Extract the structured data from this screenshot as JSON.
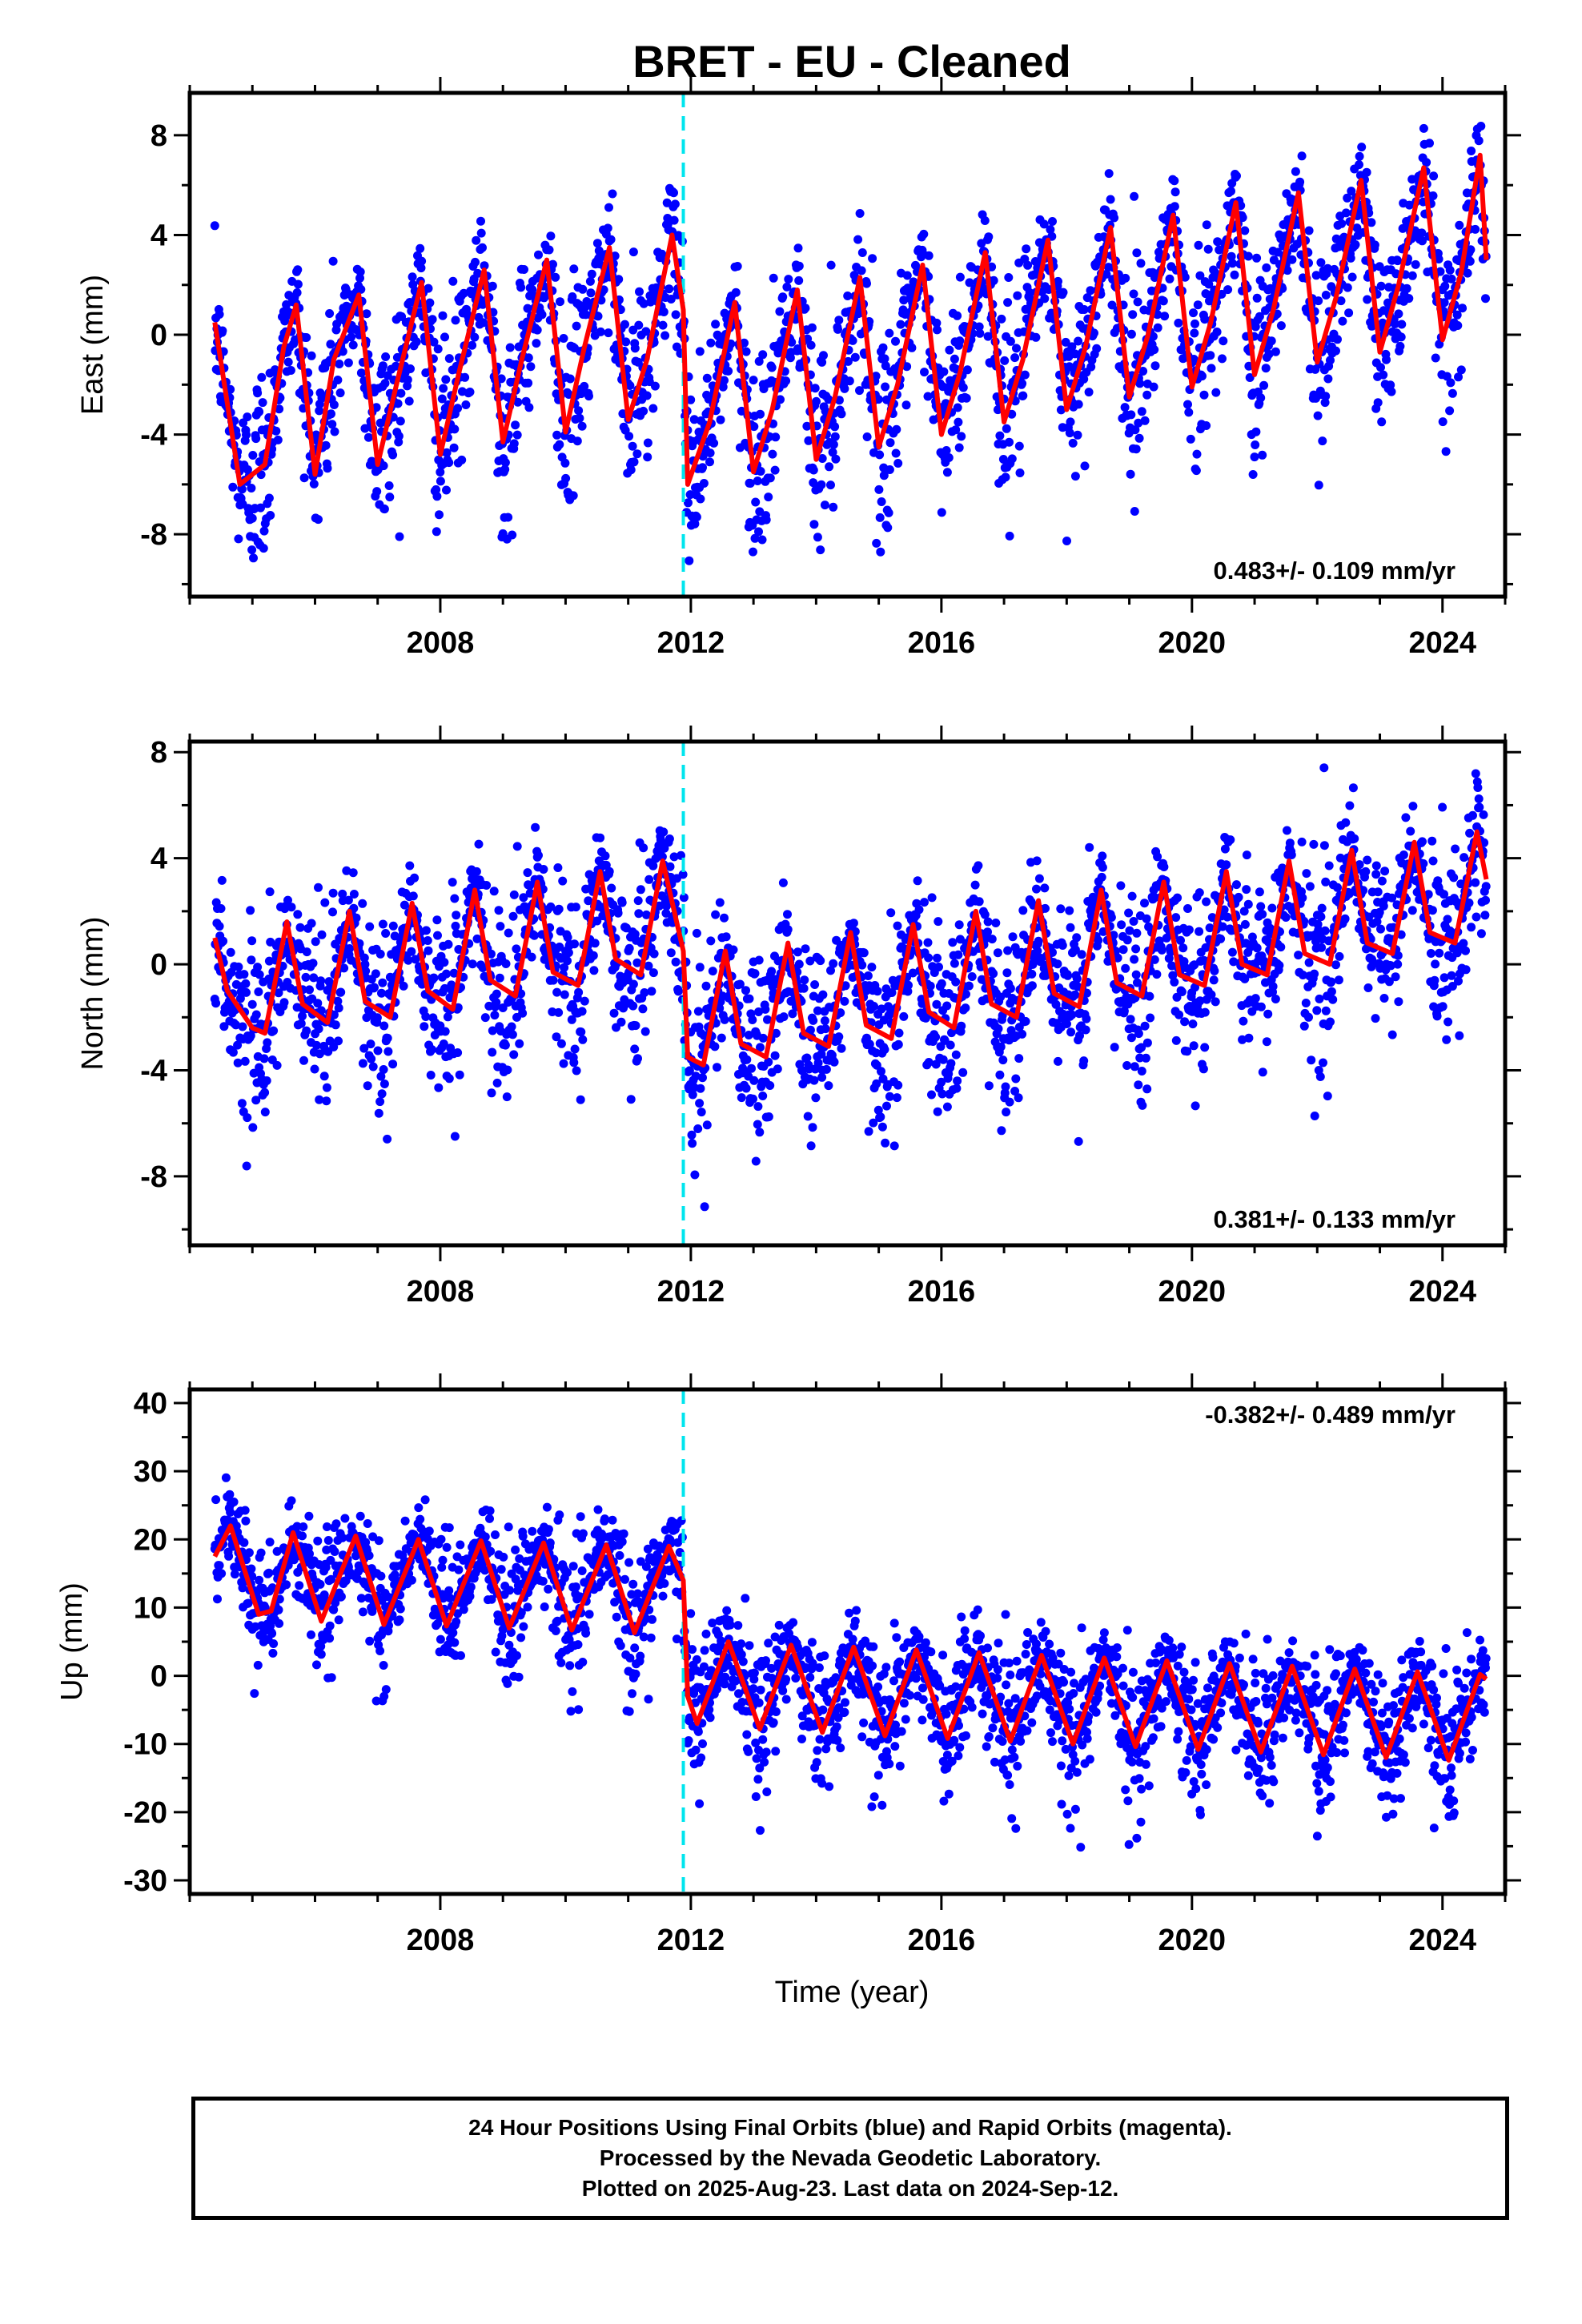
{
  "chart_data": {
    "title": "BRET  - EU - Cleaned",
    "type": "scatter",
    "x_range": [
      2004.0,
      2025.0
    ],
    "x_ticks": [
      2008,
      2012,
      2016,
      2020,
      2024
    ],
    "x_tick_labels": [
      "2008",
      "2012",
      "2016",
      "2020",
      "2024"
    ],
    "xlabel": "Time (year)",
    "data_start": 2004.4,
    "data_end": 2024.7,
    "offset_epoch": 2011.88,
    "colors": {
      "data": "#0000ff",
      "model": "#ff0000",
      "offset": "#00e5ee",
      "frame": "#000000"
    },
    "panels": [
      {
        "name": "east",
        "ylabel": "East (mm)",
        "ylim": [
          -10.5,
          9.7
        ],
        "yticks": [
          -8,
          -4,
          0,
          4,
          8
        ],
        "ytick_labels": [
          "-8",
          "-4",
          "0",
          "4",
          "8"
        ],
        "rate_label": "0.483+/- 0.109 mm/yr",
        "rate_position": "bottom-right",
        "model": [
          [
            2004.4,
            0.5
          ],
          [
            2004.8,
            -6.0
          ],
          [
            2005.2,
            -5.2
          ],
          [
            2005.5,
            -0.5
          ],
          [
            2005.7,
            1.2
          ],
          [
            2006.0,
            -5.6
          ],
          [
            2006.3,
            -1.0
          ],
          [
            2006.7,
            1.6
          ],
          [
            2007.0,
            -5.2
          ],
          [
            2007.3,
            -2.0
          ],
          [
            2007.7,
            2.1
          ],
          [
            2008.0,
            -4.8
          ],
          [
            2008.3,
            -1.5
          ],
          [
            2008.7,
            2.6
          ],
          [
            2009.0,
            -4.3
          ],
          [
            2009.3,
            -1.0
          ],
          [
            2009.7,
            3.0
          ],
          [
            2010.0,
            -3.9
          ],
          [
            2010.3,
            -0.5
          ],
          [
            2010.7,
            3.5
          ],
          [
            2011.0,
            -3.4
          ],
          [
            2011.3,
            -1.0
          ],
          [
            2011.7,
            4.0
          ],
          [
            2011.88,
            1.0
          ],
          [
            2011.95,
            -6.0
          ],
          [
            2012.3,
            -3.5
          ],
          [
            2012.7,
            1.3
          ],
          [
            2013.0,
            -5.5
          ],
          [
            2013.3,
            -3.0
          ],
          [
            2013.7,
            1.8
          ],
          [
            2014.0,
            -5.0
          ],
          [
            2014.3,
            -2.5
          ],
          [
            2014.7,
            2.3
          ],
          [
            2015.0,
            -4.5
          ],
          [
            2015.3,
            -2.0
          ],
          [
            2015.7,
            2.8
          ],
          [
            2016.0,
            -4.0
          ],
          [
            2016.3,
            -1.5
          ],
          [
            2016.7,
            3.3
          ],
          [
            2017.0,
            -3.5
          ],
          [
            2017.3,
            -1.0
          ],
          [
            2017.7,
            3.8
          ],
          [
            2018.0,
            -3.0
          ],
          [
            2018.3,
            -0.5
          ],
          [
            2018.7,
            4.3
          ],
          [
            2019.0,
            -2.5
          ],
          [
            2019.3,
            0.0
          ],
          [
            2019.7,
            4.8
          ],
          [
            2020.0,
            -2.1
          ],
          [
            2020.3,
            0.5
          ],
          [
            2020.7,
            5.3
          ],
          [
            2021.0,
            -1.6
          ],
          [
            2021.3,
            1.0
          ],
          [
            2021.7,
            5.7
          ],
          [
            2022.0,
            -1.1
          ],
          [
            2022.3,
            1.5
          ],
          [
            2022.7,
            6.2
          ],
          [
            2023.0,
            -0.7
          ],
          [
            2023.3,
            2.0
          ],
          [
            2023.7,
            6.7
          ],
          [
            2024.0,
            -0.2
          ],
          [
            2024.3,
            2.5
          ],
          [
            2024.6,
            7.2
          ],
          [
            2024.7,
            3.0
          ]
        ]
      },
      {
        "name": "north",
        "ylabel": "North (mm)",
        "ylim": [
          -10.6,
          8.4
        ],
        "yticks": [
          -8,
          -4,
          0,
          4,
          8
        ],
        "ytick_labels": [
          "-8",
          "-4",
          "0",
          "4",
          "8"
        ],
        "rate_label": "0.381+/- 0.133 mm/yr",
        "rate_position": "bottom-right",
        "model": [
          [
            2004.4,
            1.0
          ],
          [
            2004.6,
            -1.0
          ],
          [
            2005.0,
            -2.4
          ],
          [
            2005.2,
            -2.6
          ],
          [
            2005.55,
            1.6
          ],
          [
            2005.8,
            -1.5
          ],
          [
            2006.2,
            -2.2
          ],
          [
            2006.55,
            2.0
          ],
          [
            2006.8,
            -1.4
          ],
          [
            2007.2,
            -2.0
          ],
          [
            2007.55,
            2.3
          ],
          [
            2007.8,
            -1.0
          ],
          [
            2008.2,
            -1.7
          ],
          [
            2008.55,
            2.8
          ],
          [
            2008.8,
            -0.6
          ],
          [
            2009.2,
            -1.2
          ],
          [
            2009.55,
            3.1
          ],
          [
            2009.8,
            -0.3
          ],
          [
            2010.2,
            -0.8
          ],
          [
            2010.55,
            3.5
          ],
          [
            2010.8,
            0.2
          ],
          [
            2011.2,
            -0.4
          ],
          [
            2011.55,
            3.9
          ],
          [
            2011.88,
            0.5
          ],
          [
            2011.95,
            -3.5
          ],
          [
            2012.2,
            -3.8
          ],
          [
            2012.55,
            0.5
          ],
          [
            2012.8,
            -3.0
          ],
          [
            2013.2,
            -3.5
          ],
          [
            2013.55,
            0.8
          ],
          [
            2013.8,
            -2.6
          ],
          [
            2014.2,
            -3.1
          ],
          [
            2014.55,
            1.2
          ],
          [
            2014.8,
            -2.3
          ],
          [
            2015.2,
            -2.8
          ],
          [
            2015.55,
            1.5
          ],
          [
            2015.8,
            -1.8
          ],
          [
            2016.2,
            -2.4
          ],
          [
            2016.55,
            2.0
          ],
          [
            2016.8,
            -1.5
          ],
          [
            2017.2,
            -2.0
          ],
          [
            2017.55,
            2.4
          ],
          [
            2017.8,
            -1.1
          ],
          [
            2018.2,
            -1.6
          ],
          [
            2018.55,
            2.8
          ],
          [
            2018.8,
            -0.7
          ],
          [
            2019.2,
            -1.2
          ],
          [
            2019.55,
            3.1
          ],
          [
            2019.8,
            -0.4
          ],
          [
            2020.2,
            -0.8
          ],
          [
            2020.55,
            3.5
          ],
          [
            2020.8,
            0.0
          ],
          [
            2021.2,
            -0.4
          ],
          [
            2021.55,
            3.9
          ],
          [
            2021.8,
            0.4
          ],
          [
            2022.2,
            0.0
          ],
          [
            2022.55,
            4.3
          ],
          [
            2022.8,
            0.8
          ],
          [
            2023.2,
            0.4
          ],
          [
            2023.55,
            4.6
          ],
          [
            2023.8,
            1.2
          ],
          [
            2024.2,
            0.8
          ],
          [
            2024.55,
            5.0
          ],
          [
            2024.7,
            3.2
          ]
        ]
      },
      {
        "name": "up",
        "ylabel": "Up (mm)",
        "ylim": [
          -32.0,
          42.0
        ],
        "yticks": [
          -30,
          -20,
          -10,
          0,
          10,
          20,
          30,
          40
        ],
        "ytick_labels": [
          "-30",
          "-20",
          "-10",
          "0",
          "10",
          "20",
          "30",
          "40"
        ],
        "rate_label": "-0.382+/- 0.489 mm/yr",
        "rate_position": "top-right",
        "model": [
          [
            2004.4,
            17.5
          ],
          [
            2004.65,
            22.0
          ],
          [
            2005.1,
            9.0
          ],
          [
            2005.3,
            9.5
          ],
          [
            2005.65,
            21.0
          ],
          [
            2006.1,
            8.0
          ],
          [
            2006.65,
            20.5
          ],
          [
            2007.1,
            7.5
          ],
          [
            2007.65,
            20.0
          ],
          [
            2008.1,
            7.3
          ],
          [
            2008.65,
            19.8
          ],
          [
            2009.1,
            7.0
          ],
          [
            2009.65,
            19.5
          ],
          [
            2010.1,
            6.7
          ],
          [
            2010.65,
            19.2
          ],
          [
            2011.1,
            6.3
          ],
          [
            2011.65,
            19.0
          ],
          [
            2011.88,
            14.0
          ],
          [
            2011.95,
            -3.0
          ],
          [
            2012.1,
            -7.0
          ],
          [
            2012.6,
            5.0
          ],
          [
            2013.1,
            -7.8
          ],
          [
            2013.6,
            4.5
          ],
          [
            2014.1,
            -8.3
          ],
          [
            2014.6,
            4.2
          ],
          [
            2015.1,
            -8.8
          ],
          [
            2015.6,
            3.8
          ],
          [
            2016.1,
            -9.2
          ],
          [
            2016.6,
            3.4
          ],
          [
            2017.1,
            -9.6
          ],
          [
            2017.6,
            3.0
          ],
          [
            2018.1,
            -10.0
          ],
          [
            2018.6,
            2.6
          ],
          [
            2019.1,
            -10.4
          ],
          [
            2019.6,
            2.2
          ],
          [
            2020.1,
            -10.8
          ],
          [
            2020.6,
            1.8
          ],
          [
            2021.1,
            -11.2
          ],
          [
            2021.6,
            1.4
          ],
          [
            2022.1,
            -11.6
          ],
          [
            2022.6,
            1.0
          ],
          [
            2023.1,
            -12.0
          ],
          [
            2023.6,
            0.6
          ],
          [
            2024.1,
            -12.4
          ],
          [
            2024.6,
            0.2
          ],
          [
            2024.7,
            -0.5
          ]
        ]
      }
    ],
    "legend": [
      "24 Hour Positions Using Final Orbits (blue) and Rapid Orbits (magenta).",
      "Processed by the Nevada Geodetic Laboratory.",
      "Plotted on 2025-Aug-23. Last data on 2024-Sep-12."
    ]
  }
}
